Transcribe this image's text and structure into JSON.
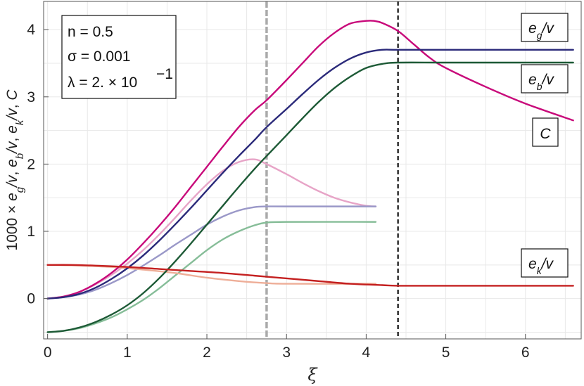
{
  "chart_data": {
    "type": "line",
    "xlabel": "ξ",
    "ylabel": "1000 × e_g/v, e_b/v, e_k/v, C",
    "xlim": [
      -0.05,
      6.7
    ],
    "ylim": [
      -0.6,
      4.42
    ],
    "xticks": [
      "0",
      "1",
      "2",
      "3",
      "4",
      "5",
      "6"
    ],
    "yticks": [
      "0",
      "1",
      "2",
      "3",
      "4"
    ],
    "grid": true,
    "params": {
      "n": "n = 0.5",
      "sigma": "σ = 0.001",
      "lambda": "λ = 2. × 10",
      "lambda_exp": "−1"
    },
    "vlines": [
      {
        "x": 2.75,
        "style": "dashed",
        "color": "#aaaaaa"
      },
      {
        "x": 4.4,
        "style": "dashed",
        "color": "#111111"
      }
    ],
    "labels": {
      "eg": "e_g/v",
      "eb": "e_b/v",
      "ek": "e_k/v",
      "C": "C"
    },
    "series": [
      {
        "id": "C",
        "color": "#c8097a",
        "width": 2.4,
        "x": [
          0,
          0.2,
          0.4,
          0.6,
          0.8,
          1.0,
          1.2,
          1.4,
          1.6,
          1.8,
          2.0,
          2.2,
          2.4,
          2.6,
          2.75,
          3.0,
          3.2,
          3.4,
          3.6,
          3.8,
          4.0,
          4.1,
          4.2,
          4.4,
          4.6,
          4.8,
          5.0,
          5.5,
          6.0,
          6.6
        ],
        "y": [
          0,
          0.03,
          0.1,
          0.22,
          0.38,
          0.58,
          0.82,
          1.08,
          1.36,
          1.66,
          1.96,
          2.26,
          2.55,
          2.8,
          2.95,
          3.25,
          3.5,
          3.75,
          3.95,
          4.09,
          4.13,
          4.13,
          4.1,
          3.98,
          3.78,
          3.58,
          3.43,
          3.15,
          2.9,
          2.65
        ]
      },
      {
        "id": "eb",
        "color": "#2b2a7a",
        "width": 2.4,
        "x": [
          0,
          0.2,
          0.4,
          0.6,
          0.8,
          1.0,
          1.2,
          1.4,
          1.6,
          1.8,
          2.0,
          2.2,
          2.4,
          2.6,
          2.75,
          3.0,
          3.2,
          3.4,
          3.6,
          3.8,
          4.0,
          4.2,
          4.4,
          5.0,
          6.0,
          6.6
        ],
        "y": [
          0,
          0.02,
          0.07,
          0.16,
          0.29,
          0.45,
          0.64,
          0.86,
          1.1,
          1.35,
          1.61,
          1.87,
          2.12,
          2.36,
          2.55,
          2.82,
          3.04,
          3.25,
          3.43,
          3.57,
          3.66,
          3.7,
          3.7,
          3.7,
          3.7,
          3.7
        ]
      },
      {
        "id": "eg",
        "color": "#1d5a36",
        "width": 2.4,
        "x": [
          0,
          0.2,
          0.4,
          0.6,
          0.8,
          1.0,
          1.2,
          1.4,
          1.6,
          1.8,
          2.0,
          2.2,
          2.4,
          2.6,
          2.75,
          3.0,
          3.2,
          3.4,
          3.6,
          3.8,
          4.0,
          4.2,
          4.4,
          5.0,
          6.0,
          6.6
        ],
        "y": [
          -0.5,
          -0.48,
          -0.43,
          -0.35,
          -0.24,
          -0.1,
          0.08,
          0.3,
          0.55,
          0.82,
          1.1,
          1.38,
          1.66,
          1.93,
          2.12,
          2.43,
          2.68,
          2.92,
          3.13,
          3.3,
          3.43,
          3.49,
          3.51,
          3.51,
          3.51,
          3.51
        ]
      },
      {
        "id": "ek",
        "color": "#c42020",
        "width": 2.4,
        "x": [
          0,
          0.3,
          0.6,
          1.0,
          1.4,
          1.8,
          2.2,
          2.6,
          3.0,
          3.4,
          3.8,
          4.2,
          4.4,
          5.0,
          6.0,
          6.6
        ],
        "y": [
          0.5,
          0.5,
          0.49,
          0.47,
          0.44,
          0.41,
          0.38,
          0.34,
          0.3,
          0.26,
          0.22,
          0.2,
          0.19,
          0.19,
          0.19,
          0.19
        ]
      },
      {
        "id": "C_faint",
        "color": "#e7a4c7",
        "width": 2.4,
        "x": [
          0,
          0.2,
          0.4,
          0.6,
          0.8,
          1.0,
          1.2,
          1.4,
          1.6,
          1.8,
          2.0,
          2.2,
          2.4,
          2.6,
          2.75,
          3.0,
          3.2,
          3.4,
          3.6,
          3.8,
          4.0,
          4.12
        ],
        "y": [
          0,
          0.03,
          0.1,
          0.21,
          0.35,
          0.52,
          0.72,
          0.95,
          1.2,
          1.46,
          1.7,
          1.9,
          2.03,
          2.07,
          2.0,
          1.85,
          1.72,
          1.6,
          1.5,
          1.43,
          1.38,
          1.37
        ]
      },
      {
        "id": "eb_faint",
        "color": "#9a98c8",
        "width": 2.4,
        "x": [
          0,
          0.2,
          0.4,
          0.6,
          0.8,
          1.0,
          1.2,
          1.4,
          1.6,
          1.8,
          2.0,
          2.2,
          2.4,
          2.6,
          2.75,
          3.0,
          4.12
        ],
        "y": [
          0,
          0.02,
          0.06,
          0.13,
          0.23,
          0.35,
          0.49,
          0.64,
          0.8,
          0.95,
          1.1,
          1.22,
          1.31,
          1.36,
          1.37,
          1.37,
          1.37
        ]
      },
      {
        "id": "eg_faint",
        "color": "#86bd98",
        "width": 2.4,
        "x": [
          0,
          0.2,
          0.4,
          0.6,
          0.8,
          1.0,
          1.2,
          1.4,
          1.6,
          1.8,
          2.0,
          2.2,
          2.4,
          2.6,
          2.75,
          3.0,
          4.12
        ],
        "y": [
          -0.5,
          -0.48,
          -0.44,
          -0.37,
          -0.28,
          -0.16,
          -0.02,
          0.15,
          0.34,
          0.53,
          0.72,
          0.88,
          1.0,
          1.09,
          1.13,
          1.14,
          1.14
        ]
      },
      {
        "id": "ek_faint",
        "color": "#eeae98",
        "width": 2.4,
        "x": [
          0,
          0.4,
          0.8,
          1.2,
          1.6,
          2.0,
          2.4,
          2.75,
          3.0,
          4.12
        ],
        "y": [
          0.5,
          0.49,
          0.47,
          0.43,
          0.38,
          0.31,
          0.26,
          0.23,
          0.22,
          0.22
        ]
      }
    ]
  }
}
